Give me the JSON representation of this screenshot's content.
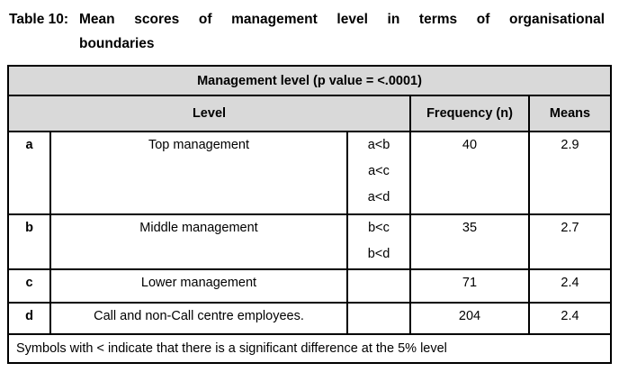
{
  "title": {
    "label": "Table 10:",
    "line1": "Mean scores of management level in terms of organisational",
    "line2": "boundaries"
  },
  "table": {
    "top_header": "Management level (p value = <.0001)",
    "header": {
      "level": "Level",
      "frequency": "Frequency (n)",
      "means": "Means"
    },
    "rows": [
      {
        "symbol": "a",
        "level": "Top management",
        "comparisons": [
          "a<b",
          "a<c",
          "a<d"
        ],
        "frequency": "40",
        "means": "2.9"
      },
      {
        "symbol": "b",
        "level": "Middle management",
        "comparisons": [
          "b<c",
          "b<d"
        ],
        "frequency": "35",
        "means": "2.7"
      },
      {
        "symbol": "c",
        "level": "Lower management",
        "comparisons": [],
        "frequency": "71",
        "means": "2.4"
      },
      {
        "symbol": "d",
        "level": "Call and non-Call centre employees.",
        "comparisons": [],
        "frequency": "204",
        "means": "2.4"
      }
    ],
    "footnote": "Symbols with < indicate that there is a significant difference at the 5% level"
  },
  "colors": {
    "header_bg": "#d9d9d9",
    "border": "#000000",
    "text": "#000000",
    "background": "#ffffff"
  }
}
